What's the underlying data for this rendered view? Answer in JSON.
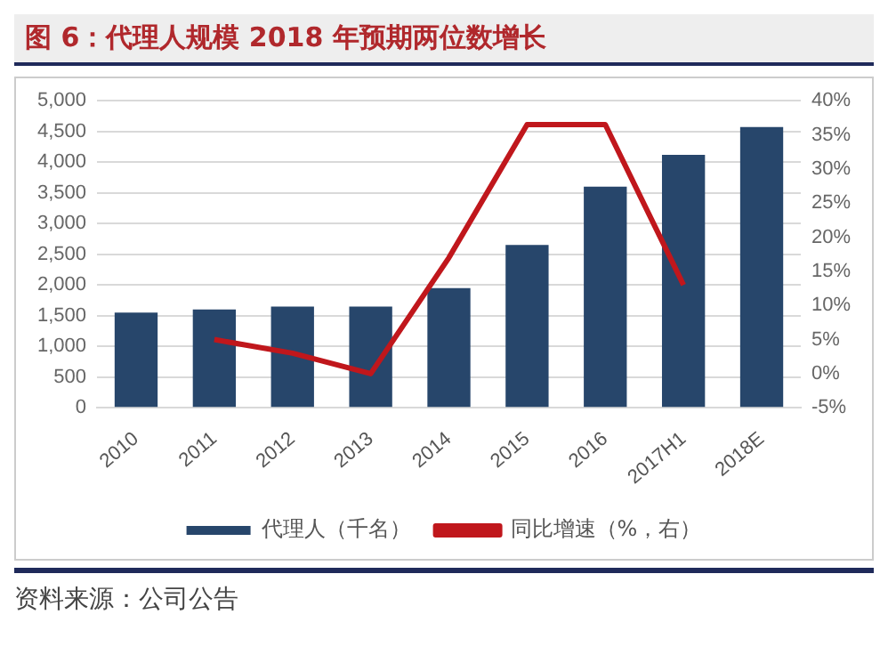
{
  "chart_data": {
    "type": "bar",
    "title": "图 6：代理人规模 2018 年预期两位数增长",
    "categories": [
      "2010",
      "2011",
      "2012",
      "2013",
      "2014",
      "2015",
      "2016",
      "2017H1",
      "2018E"
    ],
    "series": [
      {
        "name": "代理人（千名）",
        "color": "#27466b",
        "values": [
          1550,
          1600,
          1650,
          1650,
          1950,
          2650,
          3600,
          4120,
          4570
        ]
      },
      {
        "name": "同比增速（%，右）",
        "type": "line",
        "axis": "y2",
        "color": "#c0171c",
        "values": [
          null,
          5,
          3,
          0,
          17,
          36.5,
          36.5,
          13,
          null
        ]
      }
    ],
    "ylim": [
      0,
      5000
    ],
    "yticks": [
      {
        "value": 0,
        "label": "0"
      },
      {
        "value": 500,
        "label": "500"
      },
      {
        "value": 1000,
        "label": "1,000"
      },
      {
        "value": 1500,
        "label": "1,500"
      },
      {
        "value": 2000,
        "label": "2,000"
      },
      {
        "value": 2500,
        "label": "2,500"
      },
      {
        "value": 3000,
        "label": "3,000"
      },
      {
        "value": 3500,
        "label": "3,500"
      },
      {
        "value": 4000,
        "label": "4,000"
      },
      {
        "value": 4500,
        "label": "4,500"
      },
      {
        "value": 5000,
        "label": "5,000"
      }
    ],
    "y2lim": [
      -5,
      40
    ],
    "y2ticks": [
      {
        "value": -5,
        "label": "-5%"
      },
      {
        "value": 0,
        "label": "0%"
      },
      {
        "value": 5,
        "label": "5%"
      },
      {
        "value": 10,
        "label": "10%"
      },
      {
        "value": 15,
        "label": "15%"
      },
      {
        "value": 20,
        "label": "20%"
      },
      {
        "value": 25,
        "label": "25%"
      },
      {
        "value": 30,
        "label": "30%"
      },
      {
        "value": 35,
        "label": "35%"
      },
      {
        "value": 40,
        "label": "40%"
      }
    ],
    "grid": "y",
    "legend": "bottom",
    "marker": "none",
    "line_style": "solid",
    "annotations": [
      "资料来源：公司公告"
    ]
  }
}
